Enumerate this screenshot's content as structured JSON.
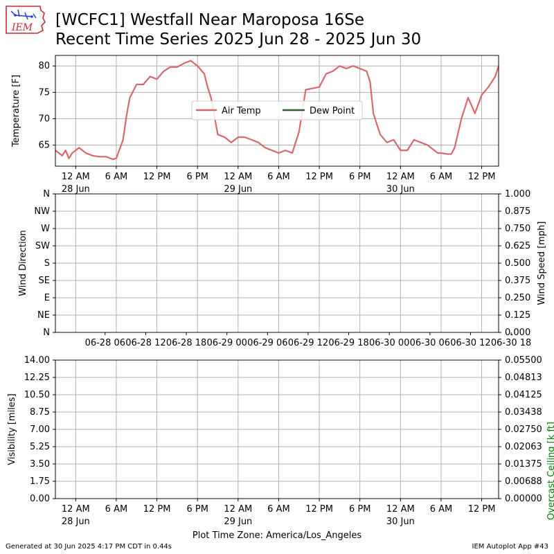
{
  "header": {
    "logo_text": "IEM",
    "title_line1": "[WCFC1] Westfall Near Maroposa 16Se",
    "title_line2": "Recent Time Series 2025 Jun 28 - 2025 Jun 30"
  },
  "footer": {
    "generated": "Generated at 30 Jun 2025 4:17 PM CDT in 0.44s",
    "app": "IEM Autoplot App #43"
  },
  "colors": {
    "air_temp": "#d9676b",
    "dew_point": "#2e5e2e",
    "ceiling_label": "#008000",
    "grid": "#b0b0b0"
  },
  "chart_data": [
    {
      "type": "line",
      "ylabel": "Temperature [F]",
      "xlim": [
        "2025-06-27T21:00",
        "2025-06-30T14:30"
      ],
      "ylim": [
        61,
        82
      ],
      "yticks": [
        65,
        70,
        75,
        80
      ],
      "xticks": [
        "12 AM",
        "6 AM",
        "12 PM",
        "6 PM",
        "12 AM",
        "6 AM",
        "12 PM",
        "6 PM",
        "12 AM",
        "6 AM",
        "12 PM"
      ],
      "xtick_dates": [
        "28 Jun",
        "",
        "",
        "",
        "29 Jun",
        "",
        "",
        "",
        "30 Jun",
        "",
        ""
      ],
      "grid": true,
      "legend": {
        "placement": "center",
        "entries": [
          "Air Temp",
          "Dew Point"
        ]
      },
      "series": [
        {
          "name": "Air Temp",
          "x": [
            "2025-06-27T21:00",
            "2025-06-27T22:00",
            "2025-06-27T22:30",
            "2025-06-27T23:00",
            "2025-06-27T23:30",
            "2025-06-28T00:30",
            "2025-06-28T01:30",
            "2025-06-28T02:30",
            "2025-06-28T03:30",
            "2025-06-28T04:30",
            "2025-06-28T05:30",
            "2025-06-28T06:00",
            "2025-06-28T07:00",
            "2025-06-28T07:30",
            "2025-06-28T08:00",
            "2025-06-28T09:00",
            "2025-06-28T10:00",
            "2025-06-28T11:00",
            "2025-06-28T12:00",
            "2025-06-28T13:00",
            "2025-06-28T14:00",
            "2025-06-28T15:00",
            "2025-06-28T16:00",
            "2025-06-28T17:00",
            "2025-06-28T18:00",
            "2025-06-28T19:00",
            "2025-06-28T19:30",
            "2025-06-28T20:00",
            "2025-06-28T21:00",
            "2025-06-28T22:00",
            "2025-06-28T23:00",
            "2025-06-29T00:00",
            "2025-06-29T01:00",
            "2025-06-29T02:00",
            "2025-06-29T03:00",
            "2025-06-29T04:00",
            "2025-06-29T05:00",
            "2025-06-29T06:00",
            "2025-06-29T07:00",
            "2025-06-29T08:00",
            "2025-06-29T09:00",
            "2025-06-29T10:00",
            "2025-06-29T12:00",
            "2025-06-29T13:00",
            "2025-06-29T14:00",
            "2025-06-29T15:00",
            "2025-06-29T16:00",
            "2025-06-29T17:00",
            "2025-06-29T18:00",
            "2025-06-29T19:00",
            "2025-06-29T19:30",
            "2025-06-29T20:00",
            "2025-06-29T21:00",
            "2025-06-29T22:00",
            "2025-06-29T23:00",
            "2025-06-30T00:00",
            "2025-06-30T01:00",
            "2025-06-30T02:00",
            "2025-06-30T03:00",
            "2025-06-30T04:00",
            "2025-06-30T05:00",
            "2025-06-30T05:30",
            "2025-06-30T06:00",
            "2025-06-30T07:00",
            "2025-06-30T07:30",
            "2025-06-30T08:00",
            "2025-06-30T09:00",
            "2025-06-30T10:00",
            "2025-06-30T11:00",
            "2025-06-30T12:00",
            "2025-06-30T13:00",
            "2025-06-30T14:00",
            "2025-06-30T14:30"
          ],
          "values": [
            64,
            63,
            64,
            62.5,
            63.5,
            64.5,
            63.5,
            63,
            62.8,
            62.8,
            62.3,
            62.5,
            66,
            70.5,
            74,
            76.5,
            76.5,
            78,
            77.5,
            79,
            79.8,
            79.8,
            80.5,
            81,
            80,
            78.5,
            76,
            74,
            67,
            66.5,
            65.5,
            66.5,
            66.5,
            66,
            65.5,
            64.5,
            64,
            63.5,
            64,
            63.5,
            67.5,
            75.5,
            76,
            78.5,
            79,
            80,
            79.5,
            80,
            79.5,
            79,
            77,
            71,
            67,
            65.5,
            66,
            64,
            64,
            66,
            65.5,
            65,
            64,
            63.5,
            63.5,
            63.3,
            63.3,
            64.5,
            70,
            74,
            71,
            74.5,
            76,
            78,
            80
          ]
        },
        {
          "name": "Dew Point",
          "x": [],
          "values": []
        }
      ]
    },
    {
      "type": "line",
      "ylabel": "Wind Direction",
      "ylabel_right": "Wind Speed [mph]",
      "ylim": [
        0,
        360
      ],
      "ylim_right": [
        0,
        1
      ],
      "yticks": [
        "N",
        "NE",
        "E",
        "SE",
        "S",
        "SW",
        "W",
        "NW",
        "N"
      ],
      "yticks_right": [
        "0.000",
        "0.125",
        "0.250",
        "0.375",
        "0.500",
        "0.625",
        "0.750",
        "0.875",
        "1.000"
      ],
      "xticks": [
        "06-28 06",
        "06-28 12",
        "06-28 18",
        "06-29 00",
        "06-29 06",
        "06-29 12",
        "06-29 18",
        "06-30 00",
        "06-30 06",
        "06-30 12",
        "06-30 18"
      ],
      "grid": true,
      "series": []
    },
    {
      "type": "line",
      "ylabel": "Visibility [miles]",
      "ylabel_right": "Overcast Ceiling [k ft]",
      "xlabel": "Plot Time Zone: America/Los_Angeles",
      "ylim": [
        0,
        14
      ],
      "ylim_right": [
        0,
        0.055
      ],
      "yticks": [
        "0.00",
        "1.75",
        "3.50",
        "5.25",
        "7.00",
        "8.75",
        "10.50",
        "12.25",
        "14.00"
      ],
      "yticks_right": [
        "0.00000",
        "0.00688",
        "0.01375",
        "0.02063",
        "0.02750",
        "0.03438",
        "0.04125",
        "0.04813",
        "0.05500"
      ],
      "xticks": [
        "12 AM",
        "6 AM",
        "12 PM",
        "6 PM",
        "12 AM",
        "6 AM",
        "12 PM",
        "6 PM",
        "12 AM",
        "6 AM",
        "12 PM"
      ],
      "xtick_dates": [
        "28 Jun",
        "",
        "",
        "",
        "29 Jun",
        "",
        "",
        "",
        "30 Jun",
        "",
        ""
      ],
      "grid": true,
      "series": []
    }
  ]
}
